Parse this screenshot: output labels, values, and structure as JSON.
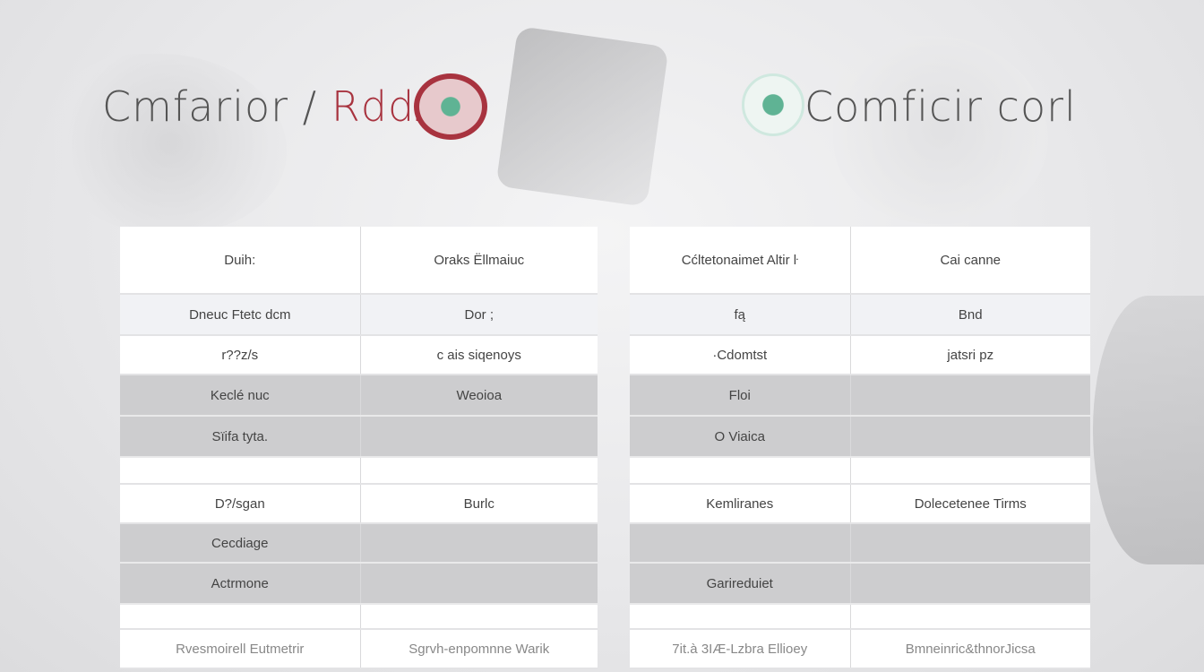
{
  "left_title": {
    "main": "Cmfarior / ",
    "accent": "Rdd≥"
  },
  "right_title": "Comficir corl",
  "colors": {
    "accent": "#a8333f",
    "logo_green": "#5fb394",
    "row_gray": "#cdcdcf",
    "row_light": "#f1f2f5"
  },
  "left_table": {
    "rows": [
      [
        "Duih:",
        "Oraks Ëllmaiuc"
      ],
      [
        "Dneuc Ftetc dcm",
        "Dor ;"
      ],
      [
        "r??z/s",
        "c ais siqenoys"
      ],
      [
        "Keclé nuc",
        "Weoioa"
      ],
      [
        "Sïifa tyta.",
        ""
      ],
      [
        "",
        ""
      ],
      [
        "D?/sgan",
        "Burlc"
      ],
      [
        "Cecdiage",
        ""
      ],
      [
        "Actrmone",
        ""
      ],
      [
        "",
        ""
      ],
      [
        "Rvesmoirell Eutmetrir",
        "Sgrvh-enpomnne Warik"
      ]
    ]
  },
  "right_table": {
    "rows": [
      [
        "Cćltetonaimet Altir ŀ",
        "Cai canne"
      ],
      [
        "fą",
        "Bnd"
      ],
      [
        "·Cdomtst",
        "jatsri pz"
      ],
      [
        "Floi",
        ""
      ],
      [
        "O Viaica",
        ""
      ],
      [
        "",
        ""
      ],
      [
        "Kemliranes",
        "Dolecetenee Tirms"
      ],
      [
        "",
        ""
      ],
      [
        "Garireduiet",
        ""
      ],
      [
        "",
        ""
      ],
      [
        "7it.à 3IÆ-Lzbra Ellioey",
        "Bmneinric&thnorJicsa"
      ]
    ]
  }
}
